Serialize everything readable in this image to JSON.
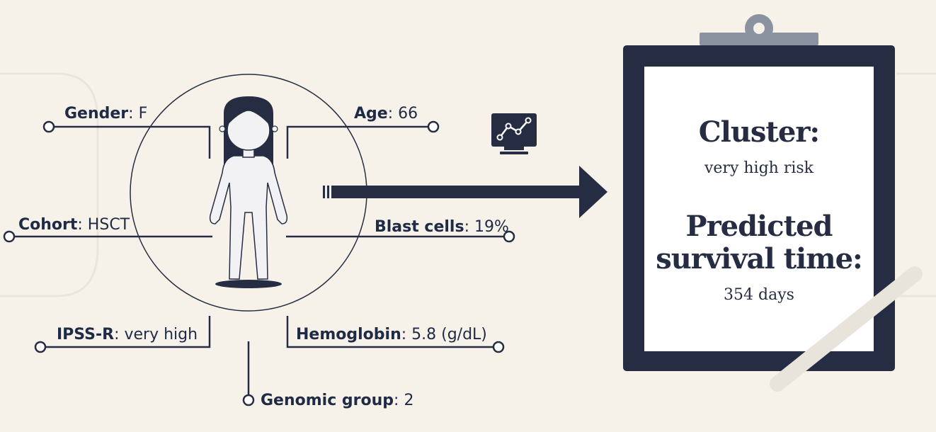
{
  "patient": {
    "gender": {
      "label": "Gender",
      "value": ": F"
    },
    "age": {
      "label": "Age",
      "value": ": 66"
    },
    "cohort": {
      "label": "Cohort",
      "value": ": HSCT"
    },
    "blast": {
      "label": "Blast cells",
      "value": ": 19%"
    },
    "ipss": {
      "label": "IPSS-R",
      "value": ": very high"
    },
    "hemoglobin": {
      "label": "Hemoglobin",
      "value": ": 5.8 (g/dL)"
    },
    "genomic": {
      "label": "Genomic group",
      "value": ": 2"
    }
  },
  "result": {
    "cluster_title": "Cluster:",
    "cluster_value": "very high risk",
    "survival_title_1": "Predicted",
    "survival_title_2": "survival time:",
    "survival_value": "354 days"
  },
  "icons": [
    "monitor-chart-icon",
    "arrow-icon",
    "clipboard-icon",
    "person-icon",
    "pen-icon"
  ],
  "colors": {
    "navy": "#262d42",
    "background": "#f6f2ea",
    "clip": "#8a929f"
  }
}
